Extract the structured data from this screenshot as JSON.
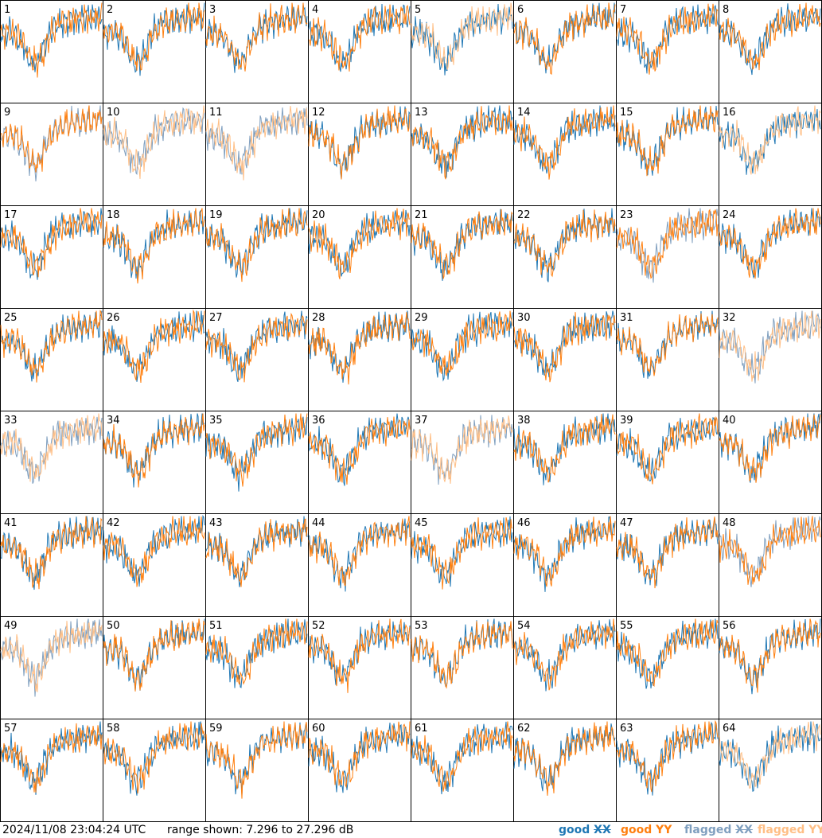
{
  "footer": {
    "timestamp": "2024/11/08 23:04:24 UTC",
    "range_text": "range shown: 7.296 to 27.296 dB"
  },
  "legend": {
    "good_xx": "good",
    "good_yy": "good",
    "flagged_xx": "flagged",
    "flagged_yy": "flagged",
    "xx_suffix": "XX",
    "yy_suffix": "YY"
  },
  "colors": {
    "good_xx": "#1f77b4",
    "good_yy": "#ff7f0e",
    "flagged_xx": "#7f9fbf",
    "flagged_yy": "#ffbf86"
  },
  "chart_data": {
    "type": "line",
    "layout": "small-multiples 8x8",
    "y_range_db": [
      7.296,
      27.296
    ],
    "tiles": [
      {
        "id": "1",
        "xx": "good",
        "yy": "good"
      },
      {
        "id": "2",
        "xx": "good",
        "yy": "good"
      },
      {
        "id": "3",
        "xx": "good",
        "yy": "good"
      },
      {
        "id": "4",
        "xx": "good",
        "yy": "good"
      },
      {
        "id": "5",
        "xx": "good",
        "yy": "flagged"
      },
      {
        "id": "6",
        "xx": "good",
        "yy": "good"
      },
      {
        "id": "7",
        "xx": "good",
        "yy": "good"
      },
      {
        "id": "8",
        "xx": "good",
        "yy": "good"
      },
      {
        "id": "9",
        "xx": "flagged",
        "yy": "good"
      },
      {
        "id": "10",
        "xx": "flagged",
        "yy": "flagged"
      },
      {
        "id": "11",
        "xx": "flagged",
        "yy": "flagged"
      },
      {
        "id": "12",
        "xx": "good",
        "yy": "good"
      },
      {
        "id": "13",
        "xx": "good",
        "yy": "good"
      },
      {
        "id": "14",
        "xx": "good",
        "yy": "good"
      },
      {
        "id": "15",
        "xx": "good",
        "yy": "good"
      },
      {
        "id": "16",
        "xx": "good",
        "yy": "flagged"
      },
      {
        "id": "17",
        "xx": "good",
        "yy": "good"
      },
      {
        "id": "18",
        "xx": "good",
        "yy": "good"
      },
      {
        "id": "19",
        "xx": "good",
        "yy": "good"
      },
      {
        "id": "20",
        "xx": "good",
        "yy": "good"
      },
      {
        "id": "21",
        "xx": "good",
        "yy": "good"
      },
      {
        "id": "22",
        "xx": "good",
        "yy": "good"
      },
      {
        "id": "23",
        "xx": "flagged",
        "yy": "good"
      },
      {
        "id": "24",
        "xx": "good",
        "yy": "good"
      },
      {
        "id": "25",
        "xx": "good",
        "yy": "good"
      },
      {
        "id": "26",
        "xx": "good",
        "yy": "good"
      },
      {
        "id": "27",
        "xx": "good",
        "yy": "good"
      },
      {
        "id": "28",
        "xx": "good",
        "yy": "good"
      },
      {
        "id": "29",
        "xx": "good",
        "yy": "good"
      },
      {
        "id": "30",
        "xx": "good",
        "yy": "good"
      },
      {
        "id": "31",
        "xx": "good",
        "yy": "good"
      },
      {
        "id": "32",
        "xx": "flagged",
        "yy": "flagged"
      },
      {
        "id": "33",
        "xx": "flagged",
        "yy": "flagged"
      },
      {
        "id": "34",
        "xx": "good",
        "yy": "good"
      },
      {
        "id": "35",
        "xx": "good",
        "yy": "good"
      },
      {
        "id": "36",
        "xx": "good",
        "yy": "good"
      },
      {
        "id": "37",
        "xx": "flagged",
        "yy": "flagged"
      },
      {
        "id": "38",
        "xx": "good",
        "yy": "good"
      },
      {
        "id": "39",
        "xx": "good",
        "yy": "good"
      },
      {
        "id": "40",
        "xx": "good",
        "yy": "good"
      },
      {
        "id": "41",
        "xx": "good",
        "yy": "good"
      },
      {
        "id": "42",
        "xx": "good",
        "yy": "good"
      },
      {
        "id": "43",
        "xx": "good",
        "yy": "good"
      },
      {
        "id": "44",
        "xx": "good",
        "yy": "good"
      },
      {
        "id": "45",
        "xx": "good",
        "yy": "good"
      },
      {
        "id": "46",
        "xx": "good",
        "yy": "good"
      },
      {
        "id": "47",
        "xx": "good",
        "yy": "good"
      },
      {
        "id": "48",
        "xx": "flagged",
        "yy": "good"
      },
      {
        "id": "49",
        "xx": "flagged",
        "yy": "flagged"
      },
      {
        "id": "50",
        "xx": "good",
        "yy": "good"
      },
      {
        "id": "51",
        "xx": "good",
        "yy": "good"
      },
      {
        "id": "52",
        "xx": "good",
        "yy": "good"
      },
      {
        "id": "53",
        "xx": "good",
        "yy": "good"
      },
      {
        "id": "54",
        "xx": "good",
        "yy": "good"
      },
      {
        "id": "55",
        "xx": "good",
        "yy": "good"
      },
      {
        "id": "56",
        "xx": "good",
        "yy": "good"
      },
      {
        "id": "57",
        "xx": "good",
        "yy": "good"
      },
      {
        "id": "58",
        "xx": "good",
        "yy": "good"
      },
      {
        "id": "59",
        "xx": "good",
        "yy": "good"
      },
      {
        "id": "60",
        "xx": "good",
        "yy": "good"
      },
      {
        "id": "61",
        "xx": "good",
        "yy": "good"
      },
      {
        "id": "62",
        "xx": "good",
        "yy": "good"
      },
      {
        "id": "63",
        "xx": "good",
        "yy": "good"
      },
      {
        "id": "64",
        "xx": "good",
        "yy": "flagged"
      }
    ]
  }
}
